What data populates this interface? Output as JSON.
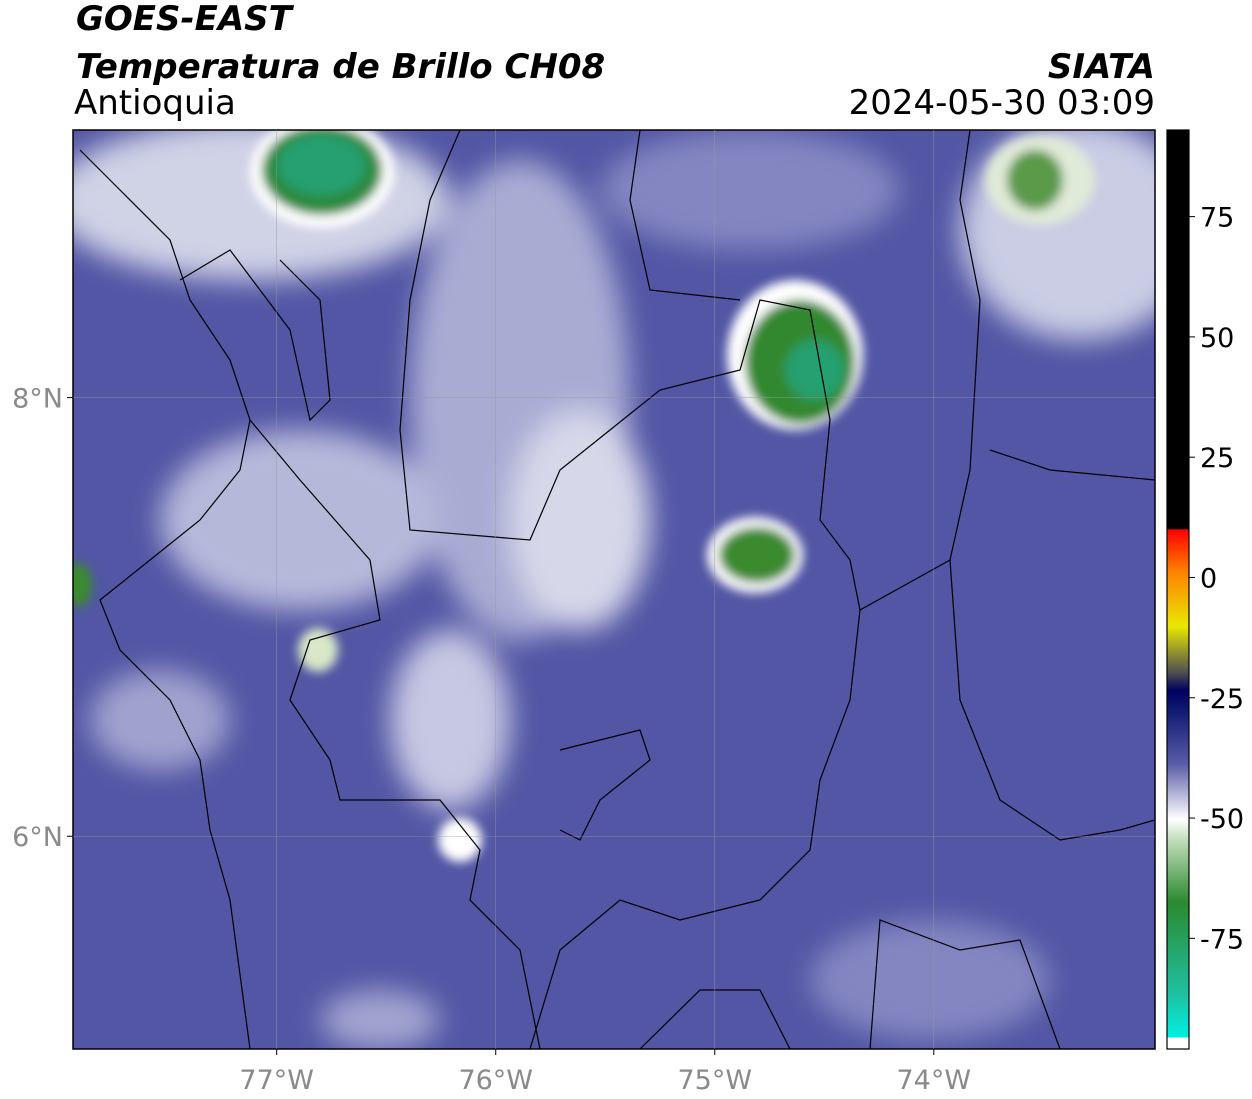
{
  "header": {
    "source": "GOES-EAST",
    "title": "Temperatura de Brillo CH08",
    "region": "Antioquia",
    "agency": "SIATA",
    "datetime": "2024-05-30 03:09"
  },
  "map": {
    "type": "map",
    "xlim": [
      -77.93,
      -72.99
    ],
    "ylim": [
      5.03,
      9.22
    ],
    "xticks": [
      {
        "value": -77,
        "label": "77°W"
      },
      {
        "value": -76,
        "label": "76°W"
      },
      {
        "value": -75,
        "label": "75°W"
      },
      {
        "value": -74,
        "label": "74°W"
      }
    ],
    "yticks": [
      {
        "value": 8,
        "label": "8°N"
      },
      {
        "value": 6,
        "label": "6°N"
      }
    ],
    "grid": true
  },
  "colorbar": {
    "lim": [
      -98,
      93
    ],
    "ticks": [
      75,
      50,
      25,
      0,
      -25,
      -50,
      -75
    ]
  }
}
